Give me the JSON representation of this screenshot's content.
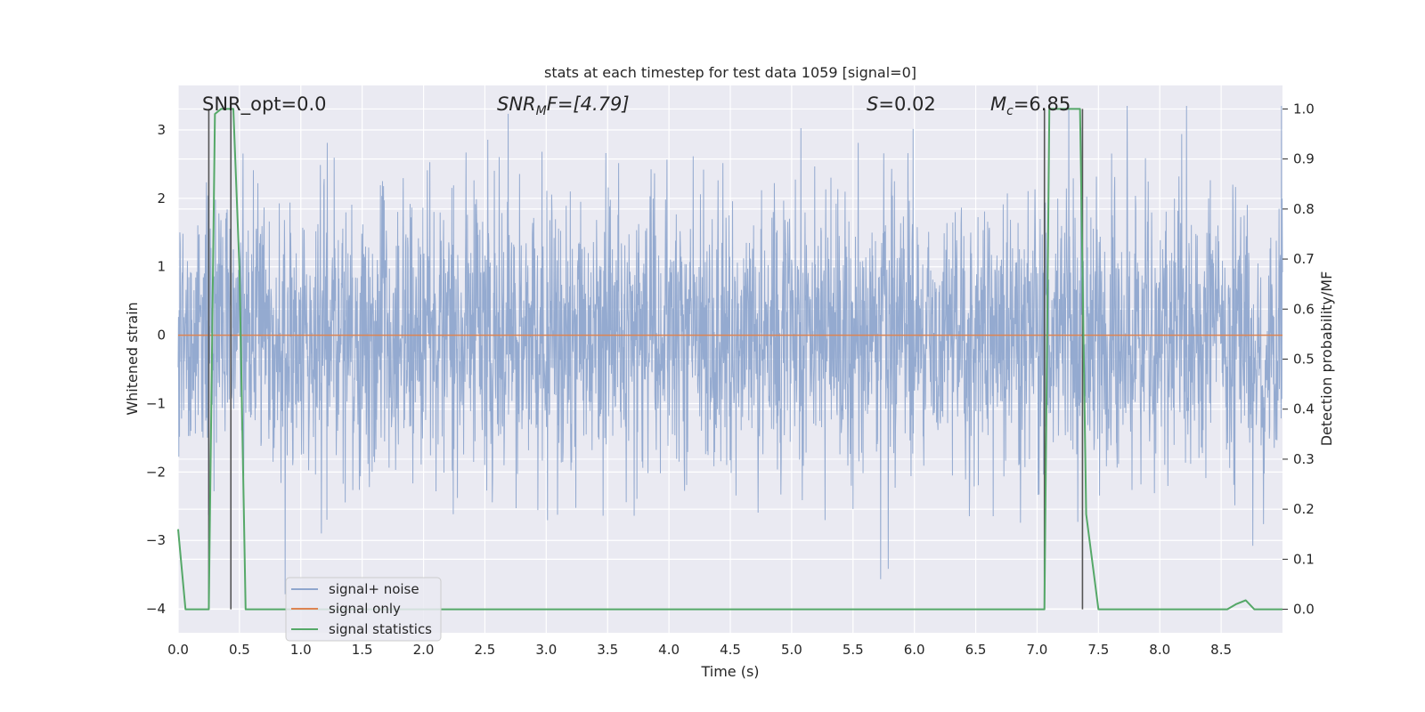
{
  "chart_data": {
    "type": "line",
    "title": "stats at each timestep for test data 1059 [signal=0]",
    "xlabel": "Time (s)",
    "ylabel": "Whitened strain",
    "ylabel_right": "Detection probability/MF",
    "xlim": [
      0.0,
      9.0
    ],
    "ylim": [
      -4.35,
      3.65
    ],
    "ylim_right": [
      -0.047,
      1.047
    ],
    "x_ticks": [
      0.0,
      0.5,
      1.0,
      1.5,
      2.0,
      2.5,
      3.0,
      3.5,
      4.0,
      4.5,
      5.0,
      5.5,
      6.0,
      6.5,
      7.0,
      7.5,
      8.0,
      8.5
    ],
    "x_tick_labels": [
      "0.0",
      "0.5",
      "1.0",
      "1.5",
      "2.0",
      "2.5",
      "3.0",
      "3.5",
      "4.0",
      "4.5",
      "5.0",
      "5.5",
      "6.0",
      "6.5",
      "7.0",
      "7.5",
      "8.0",
      "8.5"
    ],
    "y_ticks": [
      3,
      2,
      1,
      0,
      -1,
      -2,
      -3,
      -4
    ],
    "y_tick_labels": [
      "3",
      "2",
      "1",
      "0",
      "−1",
      "−2",
      "−3",
      "−4"
    ],
    "y_ticks_right": [
      1.0,
      0.9,
      0.8,
      0.7,
      0.6,
      0.5,
      0.4,
      0.3,
      0.2,
      0.1,
      0.0
    ],
    "y_tick_labels_right": [
      "1.0",
      "0.9",
      "0.8",
      "0.7",
      "0.6",
      "0.5",
      "0.4",
      "0.3",
      "0.2",
      "0.1",
      "0.0"
    ],
    "grid": true,
    "legend_position": "lower-left",
    "annotations": {
      "snr_opt": "SNR_opt=0.0",
      "snr_mf_main": "SNR",
      "snr_mf_sub": "M",
      "snr_mf_rest": "F=[4.79]",
      "s_main": "S",
      "s_rest": "=0.02",
      "mc_main": "M",
      "mc_sub": "c",
      "mc_rest": "=6.85"
    },
    "series": [
      {
        "name": "signal+ noise",
        "color": "#8fa6ce",
        "style": "noise",
        "x_range": [
          0.0,
          9.0
        ],
        "std": 1.0
      },
      {
        "name": "signal only",
        "color": "#dd8452",
        "x": [
          0.0,
          9.0
        ],
        "y": [
          0.0,
          0.0
        ]
      },
      {
        "name": "signal statistics",
        "color": "#55a868",
        "axis": "right",
        "x": [
          0.0,
          0.06,
          0.1,
          0.2,
          0.25,
          0.3,
          0.35,
          0.4,
          0.45,
          0.5,
          0.55,
          0.6,
          1.0,
          7.0,
          7.06,
          7.1,
          7.15,
          7.2,
          7.35,
          7.4,
          7.5,
          8.0,
          8.55,
          8.62,
          8.7,
          8.77,
          9.0
        ],
        "y": [
          0.16,
          0.0,
          0.0,
          0.0,
          0.0,
          0.99,
          1.0,
          1.0,
          1.0,
          0.68,
          0.0,
          0.0,
          0.0,
          0.0,
          0.0,
          1.0,
          1.0,
          1.0,
          1.0,
          0.19,
          0.0,
          0.0,
          0.0,
          0.01,
          0.018,
          0.0,
          0.0
        ]
      }
    ],
    "vertical_markers": {
      "color": "#555555",
      "x": [
        0.25,
        0.43,
        7.06,
        7.37
      ],
      "y_top_right": [
        1.0,
        1.0,
        1.0,
        1.0
      ],
      "y_bottom_right": [
        0.0,
        0.0,
        0.0,
        0.0
      ]
    },
    "colors": {
      "axes_background": "#eaeaf2",
      "grid": "#ffffff",
      "text": "#262626"
    }
  }
}
